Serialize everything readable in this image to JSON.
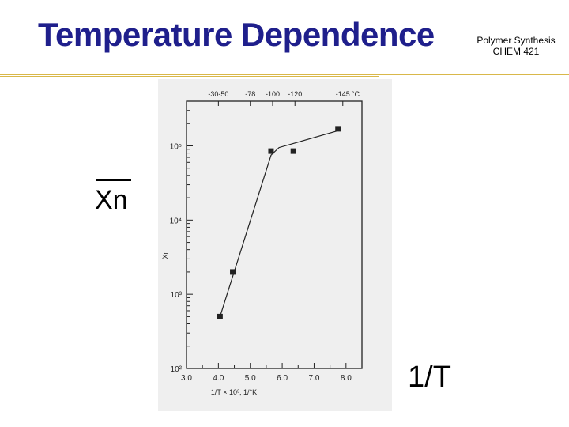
{
  "slide": {
    "title": "Temperature Dependence",
    "course_line1": "Polymer Synthesis",
    "course_line2": "CHEM 421",
    "y_label": "Xn",
    "x_label": "1/T"
  },
  "colors": {
    "title": "#1f1f8c",
    "rule": "#d9b84a",
    "scan_bg": "#efefef",
    "ink": "#222222"
  },
  "chart_data": {
    "type": "scatter",
    "title": "",
    "xlabel": "1/T × 10³, 1/°K",
    "ylabel": "Xn",
    "xlim": [
      3.0,
      8.5
    ],
    "ylim": [
      100,
      400000
    ],
    "y_scale": "log",
    "x_ticks": [
      3.0,
      4.0,
      5.0,
      6.0,
      7.0,
      8.0
    ],
    "x_tick_labels": [
      "3.0",
      "4.0",
      "5.0",
      "6.0",
      "7.0",
      "8.0"
    ],
    "y_ticks": [
      100,
      1000,
      10000,
      100000
    ],
    "y_tick_labels": [
      "10²",
      "10³",
      "10⁴",
      "10⁵"
    ],
    "top_axis_unit": "°C",
    "top_axis_labels": [
      "-30-50",
      "-78",
      "-100",
      "-120",
      "-145"
    ],
    "top_axis_positions": [
      4.0,
      5.0,
      5.7,
      6.4,
      7.9
    ],
    "series": [
      {
        "x": [
          4.05,
          4.45,
          5.65,
          6.35,
          7.75
        ],
        "y": [
          500,
          2000,
          85000,
          85000,
          170000
        ]
      }
    ],
    "trend_line": {
      "x": [
        4.05,
        5.65,
        5.9,
        7.75
      ],
      "y": [
        500,
        75000,
        95000,
        160000
      ]
    }
  }
}
